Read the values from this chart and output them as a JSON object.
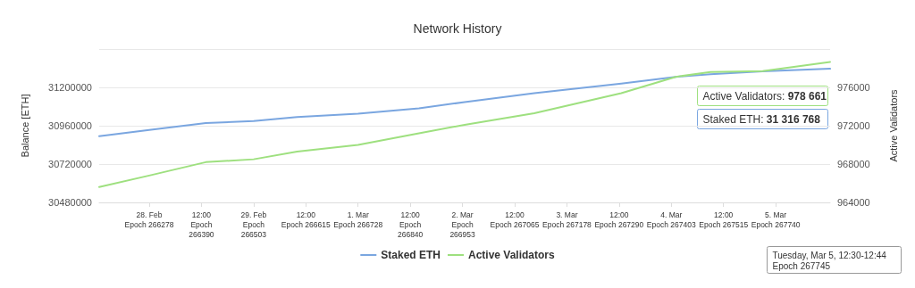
{
  "chart_data": {
    "type": "line",
    "title": "Network History",
    "ylabel": "Balance [ETH]",
    "y2label": "Active Validators",
    "x": [
      "--02-27T12:30",
      "--02-28T00:00",
      "--02-28T13:00",
      "--02-29T00:00",
      "--02-29T10:00",
      "--03-01T00:00",
      "--03-01T14:00",
      "--03-02T00:30",
      "--03-02T16:30",
      "--03-03T12:30",
      "--03-04T01:00",
      "--03-04T09:00",
      "--03-04T21:00",
      "--03-05T12:30"
    ],
    "series": [
      {
        "name": "Staked ETH",
        "color": "#7aa6e0",
        "values": [
          30895000,
          30933000,
          30977000,
          30989000,
          31015000,
          31036000,
          31069000,
          31108000,
          31164000,
          31224000,
          31266000,
          31283000,
          31300000,
          31316768
        ]
      },
      {
        "name": "Active Validators",
        "color": "#9ee07f",
        "axis": "y2",
        "values": [
          965600,
          966800,
          968200,
          968500,
          969300,
          970000,
          971200,
          972100,
          973300,
          975400,
          977100,
          977600,
          977700,
          978661
        ]
      }
    ],
    "xlim": [
      "--02-27T12:30",
      "--03-05T12:30"
    ],
    "xticks": [
      {
        "value": "--02-28T00:00",
        "label": "28. Feb\nEpoch 266278"
      },
      {
        "value": "--02-28T12:00",
        "label": "12:00\nEpoch\n266390"
      },
      {
        "value": "--02-29T00:00",
        "label": "29. Feb\nEpoch\n266503"
      },
      {
        "value": "--02-29T12:00",
        "label": "12:00\nEpoch 266615"
      },
      {
        "value": "--03-01T00:00",
        "label": "1. Mar\nEpoch 266728"
      },
      {
        "value": "--03-01T12:00",
        "label": "12:00\nEpoch\n266840"
      },
      {
        "value": "--03-02T00:00",
        "label": "2. Mar\nEpoch\n266953"
      },
      {
        "value": "--03-02T12:00",
        "label": "12:00\nEpoch 267065"
      },
      {
        "value": "--03-03T00:00",
        "label": "3. Mar\nEpoch 267178"
      },
      {
        "value": "--03-03T12:00",
        "label": "12:00\nEpoch 267290"
      },
      {
        "value": "--03-04T00:00",
        "label": "4. Mar\nEpoch 267403"
      },
      {
        "value": "--03-04T12:00",
        "label": "12:00\nEpoch 267515"
      },
      {
        "value": "--03-05T00:00",
        "label": "5. Mar\nEpoch 267740"
      }
    ],
    "ylim": [
      30480000,
      31440000
    ],
    "yticks": [
      30480000,
      30720000,
      30960000,
      31200000,
      {
        "value": 31440000,
        "label": null
      }
    ],
    "y2lim": [
      964000,
      980000
    ],
    "y2ticks": [
      964000,
      968000,
      972000,
      976000
    ],
    "grid": "y",
    "legend": "bottom",
    "marker": "none",
    "line_style": "solid",
    "annotations": [
      "Active Validators: 978 661",
      "Staked ETH: 31 316 768",
      "Tuesday, Mar 5, 12:30-12:44\nEpoch 267745"
    ]
  }
}
